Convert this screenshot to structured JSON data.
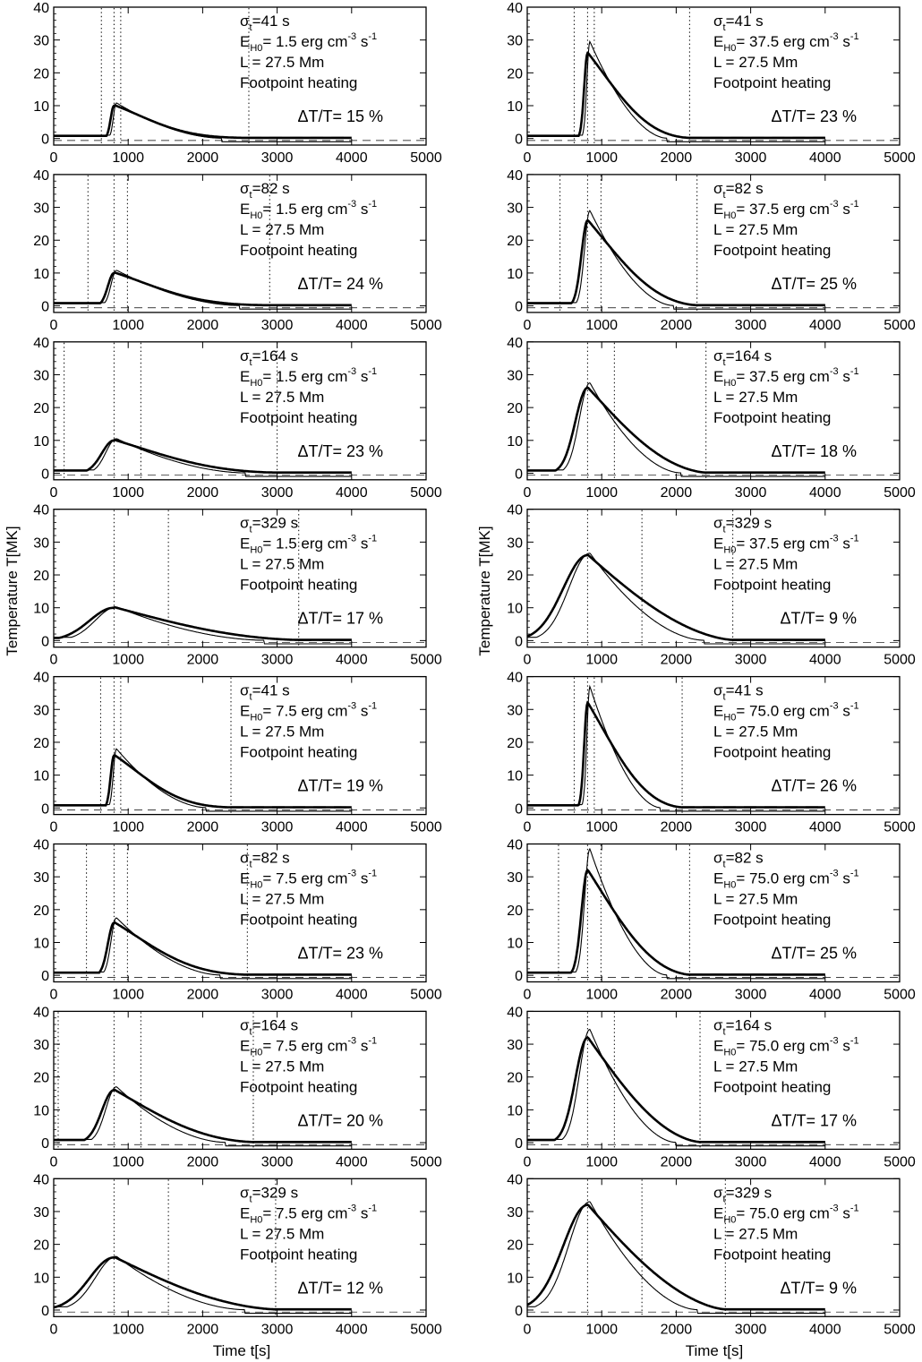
{
  "figure": {
    "ylabel": "Temperature T[MK]",
    "xlabel": "Time t[s]"
  },
  "chart_data": [
    {
      "type": "line",
      "col": 0,
      "row": 0,
      "sigma": "41 s",
      "sigma_val": 41,
      "eh0": "1.5",
      "L": "27.5 Mm",
      "heating": "Footpoint heating",
      "dT": "15 %",
      "peak": 10,
      "peak_thin": 10.8,
      "vlines": [
        640,
        810,
        900,
        2620
      ],
      "end": 2620,
      "xlim": [
        0,
        5000
      ],
      "ylim": [
        -2,
        40
      ],
      "xticks": [
        0,
        1000,
        2000,
        3000,
        4000,
        5000
      ],
      "yticks": [
        0,
        10,
        20,
        30,
        40
      ]
    },
    {
      "type": "line",
      "col": 0,
      "row": 1,
      "sigma": "82 s",
      "sigma_val": 82,
      "eh0": "1.5",
      "L": "27.5 Mm",
      "heating": "Footpoint heating",
      "dT": "24 %",
      "peak": 10,
      "peak_thin": 10.8,
      "vlines": [
        460,
        810,
        990,
        2900
      ],
      "end": 2900,
      "xlim": [
        0,
        5000
      ],
      "ylim": [
        -2,
        40
      ],
      "xticks": [
        0,
        1000,
        2000,
        3000,
        4000,
        5000
      ],
      "yticks": [
        0,
        10,
        20,
        30,
        40
      ]
    },
    {
      "type": "line",
      "col": 0,
      "row": 2,
      "sigma": "164 s",
      "sigma_val": 164,
      "eh0": "1.5",
      "L": "27.5 Mm",
      "heating": "Footpoint heating",
      "dT": "23 %",
      "peak": 10,
      "peak_thin": 10.5,
      "vlines": [
        140,
        810,
        1170,
        3000
      ],
      "end": 3000,
      "xlim": [
        0,
        5000
      ],
      "ylim": [
        -2,
        40
      ],
      "xticks": [
        0,
        1000,
        2000,
        3000,
        4000,
        5000
      ],
      "yticks": [
        0,
        10,
        20,
        30,
        40
      ]
    },
    {
      "type": "line",
      "col": 0,
      "row": 3,
      "sigma": "329 s",
      "sigma_val": 329,
      "eh0": "1.5",
      "L": "27.5 Mm",
      "heating": "Footpoint heating",
      "dT": "17 %",
      "peak": 10,
      "peak_thin": 10.2,
      "vlines": [
        810,
        1540,
        3290
      ],
      "end": 3290,
      "xlim": [
        0,
        5000
      ],
      "ylim": [
        -2,
        40
      ],
      "xticks": [
        0,
        1000,
        2000,
        3000,
        4000,
        5000
      ],
      "yticks": [
        0,
        10,
        20,
        30,
        40
      ]
    },
    {
      "type": "line",
      "col": 0,
      "row": 4,
      "sigma": "41 s",
      "sigma_val": 41,
      "eh0": "7.5",
      "L": "27.5 Mm",
      "heating": "Footpoint heating",
      "dT": "19 %",
      "peak": 16,
      "peak_thin": 18,
      "vlines": [
        630,
        810,
        900,
        2380
      ],
      "end": 2380,
      "xlim": [
        0,
        5000
      ],
      "ylim": [
        -2,
        40
      ],
      "xticks": [
        0,
        1000,
        2000,
        3000,
        4000,
        5000
      ],
      "yticks": [
        0,
        10,
        20,
        30,
        40
      ]
    },
    {
      "type": "line",
      "col": 0,
      "row": 5,
      "sigma": "82 s",
      "sigma_val": 82,
      "eh0": "7.5",
      "L": "27.5 Mm",
      "heating": "Footpoint heating",
      "dT": "23 %",
      "peak": 16,
      "peak_thin": 17.5,
      "vlines": [
        440,
        810,
        990,
        2600
      ],
      "end": 2600,
      "xlim": [
        0,
        5000
      ],
      "ylim": [
        -2,
        40
      ],
      "xticks": [
        0,
        1000,
        2000,
        3000,
        4000,
        5000
      ],
      "yticks": [
        0,
        10,
        20,
        30,
        40
      ]
    },
    {
      "type": "line",
      "col": 0,
      "row": 6,
      "sigma": "164 s",
      "sigma_val": 164,
      "eh0": "7.5",
      "L": "27.5 Mm",
      "heating": "Footpoint heating",
      "dT": "20 %",
      "peak": 16,
      "peak_thin": 17,
      "vlines": [
        60,
        810,
        1170,
        2680
      ],
      "end": 2680,
      "xlim": [
        0,
        5000
      ],
      "ylim": [
        -2,
        40
      ],
      "xticks": [
        0,
        1000,
        2000,
        3000,
        4000,
        5000
      ],
      "yticks": [
        0,
        10,
        20,
        30,
        40
      ]
    },
    {
      "type": "line",
      "col": 0,
      "row": 7,
      "sigma": "329 s",
      "sigma_val": 329,
      "eh0": "7.5",
      "L": "27.5 Mm",
      "heating": "Footpoint heating",
      "dT": "12 %",
      "peak": 16,
      "peak_thin": 16.3,
      "vlines": [
        810,
        1540,
        2980
      ],
      "end": 2980,
      "xlim": [
        0,
        5000
      ],
      "ylim": [
        -2,
        40
      ],
      "xticks": [
        0,
        1000,
        2000,
        3000,
        4000,
        5000
      ],
      "yticks": [
        0,
        10,
        20,
        30,
        40
      ]
    },
    {
      "type": "line",
      "col": 1,
      "row": 0,
      "sigma": "41 s",
      "sigma_val": 41,
      "eh0": "37.5",
      "L": "27.5 Mm",
      "heating": "Footpoint heating",
      "dT": "23 %",
      "peak": 26,
      "peak_thin": 29.5,
      "vlines": [
        630,
        810,
        900,
        2180
      ],
      "end": 2180,
      "xlim": [
        0,
        5000
      ],
      "ylim": [
        -2,
        40
      ],
      "xticks": [
        0,
        1000,
        2000,
        3000,
        4000,
        5000
      ],
      "yticks": [
        0,
        10,
        20,
        30,
        40
      ]
    },
    {
      "type": "line",
      "col": 1,
      "row": 1,
      "sigma": "82 s",
      "sigma_val": 82,
      "eh0": "37.5",
      "L": "27.5 Mm",
      "heating": "Footpoint heating",
      "dT": "25 %",
      "peak": 26,
      "peak_thin": 29,
      "vlines": [
        440,
        810,
        990,
        2280
      ],
      "end": 2280,
      "xlim": [
        0,
        5000
      ],
      "ylim": [
        -2,
        40
      ],
      "xticks": [
        0,
        1000,
        2000,
        3000,
        4000,
        5000
      ],
      "yticks": [
        0,
        10,
        20,
        30,
        40
      ]
    },
    {
      "type": "line",
      "col": 1,
      "row": 2,
      "sigma": "164 s",
      "sigma_val": 164,
      "eh0": "37.5",
      "L": "27.5 Mm",
      "heating": "Footpoint heating",
      "dT": "18 %",
      "peak": 26,
      "peak_thin": 27.5,
      "vlines": [
        810,
        1170,
        2400
      ],
      "end": 2400,
      "xlim": [
        0,
        5000
      ],
      "ylim": [
        -2,
        40
      ],
      "xticks": [
        0,
        1000,
        2000,
        3000,
        4000,
        5000
      ],
      "yticks": [
        0,
        10,
        20,
        30,
        40
      ]
    },
    {
      "type": "line",
      "col": 1,
      "row": 3,
      "sigma": "329 s",
      "sigma_val": 329,
      "eh0": "37.5",
      "L": "27.5 Mm",
      "heating": "Footpoint heating",
      "dT": " 9 %",
      "peak": 26,
      "peak_thin": 26.6,
      "vlines": [
        810,
        1540,
        2760
      ],
      "end": 2760,
      "xlim": [
        0,
        5000
      ],
      "ylim": [
        -2,
        40
      ],
      "xticks": [
        0,
        1000,
        2000,
        3000,
        4000,
        5000
      ],
      "yticks": [
        0,
        10,
        20,
        30,
        40
      ]
    },
    {
      "type": "line",
      "col": 1,
      "row": 4,
      "sigma": "41 s",
      "sigma_val": 41,
      "eh0": "75.0",
      "L": "27.5 Mm",
      "heating": "Footpoint heating",
      "dT": "26 %",
      "peak": 32,
      "peak_thin": 37,
      "vlines": [
        630,
        810,
        900,
        2080
      ],
      "end": 2080,
      "xlim": [
        0,
        5000
      ],
      "ylim": [
        -2,
        40
      ],
      "xticks": [
        0,
        1000,
        2000,
        3000,
        4000,
        5000
      ],
      "yticks": [
        0,
        10,
        20,
        30,
        40
      ]
    },
    {
      "type": "line",
      "col": 1,
      "row": 5,
      "sigma": "82 s",
      "sigma_val": 82,
      "eh0": "75.0",
      "L": "27.5 Mm",
      "heating": "Footpoint heating",
      "dT": "25 %",
      "peak": 32,
      "peak_thin": 38.5,
      "vlines": [
        420,
        810,
        990,
        2180
      ],
      "end": 2180,
      "xlim": [
        0,
        5000
      ],
      "ylim": [
        -2,
        40
      ],
      "xticks": [
        0,
        1000,
        2000,
        3000,
        4000,
        5000
      ],
      "yticks": [
        0,
        10,
        20,
        30,
        40
      ]
    },
    {
      "type": "line",
      "col": 1,
      "row": 6,
      "sigma": "164 s",
      "sigma_val": 164,
      "eh0": "75.0",
      "L": "27.5 Mm",
      "heating": "Footpoint heating",
      "dT": "17 %",
      "peak": 32,
      "peak_thin": 34.5,
      "vlines": [
        810,
        1170,
        2320
      ],
      "end": 2320,
      "xlim": [
        0,
        5000
      ],
      "ylim": [
        -2,
        40
      ],
      "xticks": [
        0,
        1000,
        2000,
        3000,
        4000,
        5000
      ],
      "yticks": [
        0,
        10,
        20,
        30,
        40
      ]
    },
    {
      "type": "line",
      "col": 1,
      "row": 7,
      "sigma": "329 s",
      "sigma_val": 329,
      "eh0": "75.0",
      "L": "27.5 Mm",
      "heating": "Footpoint heating",
      "dT": " 9 %",
      "peak": 32,
      "peak_thin": 33,
      "vlines": [
        810,
        1540,
        2660
      ],
      "end": 2660,
      "xlim": [
        0,
        5000
      ],
      "ylim": [
        -2,
        40
      ],
      "xticks": [
        0,
        1000,
        2000,
        3000,
        4000,
        5000
      ],
      "yticks": [
        0,
        10,
        20,
        30,
        40
      ]
    }
  ]
}
